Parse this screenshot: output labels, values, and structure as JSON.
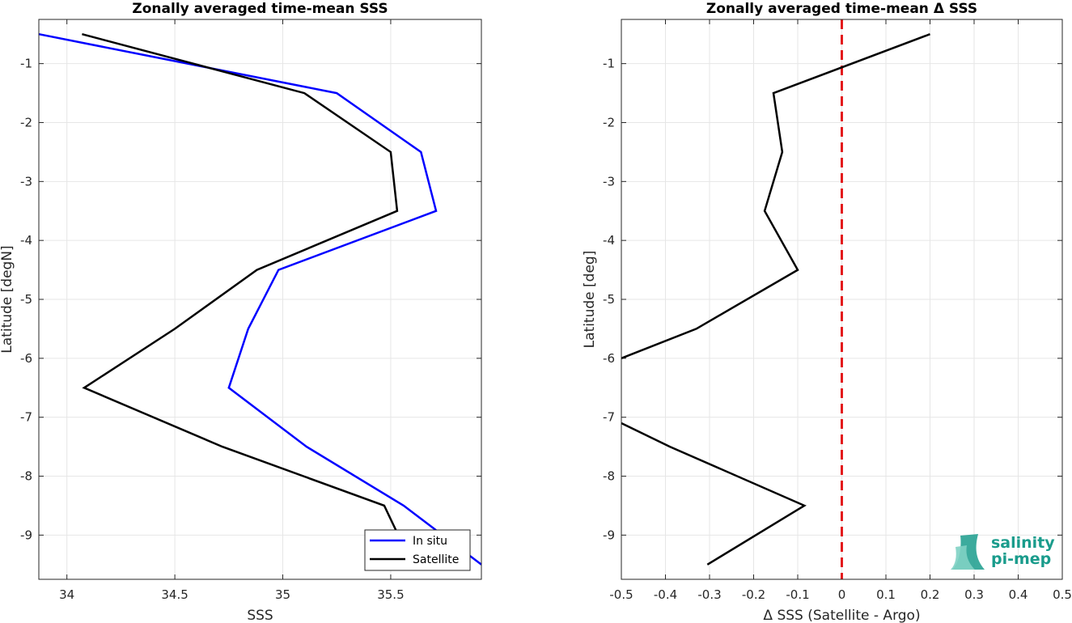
{
  "chart_data": [
    {
      "type": "line",
      "title": "Zonally averaged time-mean SSS",
      "xlabel": "SSS",
      "ylabel": "Latitude [degN]",
      "xlim": [
        33.87,
        35.92
      ],
      "ylim": [
        -9.75,
        -0.25
      ],
      "xticks": [
        34,
        34.5,
        35,
        35.5
      ],
      "xtick_labels": [
        "34",
        "34.5",
        "35",
        "35.5"
      ],
      "yticks": [
        -1,
        -2,
        -3,
        -4,
        -5,
        -6,
        -7,
        -8,
        -9
      ],
      "ytick_labels": [
        "-1",
        "-2",
        "-3",
        "-4",
        "-5",
        "-6",
        "-7",
        "-8",
        "-9"
      ],
      "grid": true,
      "legend": "bottom-right",
      "series": [
        {
          "name": "In situ",
          "color": "#0000ff",
          "points": [
            [
              33.87,
              -0.5
            ],
            [
              35.25,
              -1.5
            ],
            [
              35.64,
              -2.5
            ],
            [
              35.71,
              -3.5
            ],
            [
              34.98,
              -4.5
            ],
            [
              34.84,
              -5.5
            ],
            [
              34.75,
              -6.5
            ],
            [
              35.11,
              -7.5
            ],
            [
              35.56,
              -8.5
            ],
            [
              35.92,
              -9.5
            ]
          ]
        },
        {
          "name": "Satellite",
          "color": "#000000",
          "points": [
            [
              34.07,
              -0.5
            ],
            [
              35.1,
              -1.5
            ],
            [
              35.5,
              -2.5
            ],
            [
              35.53,
              -3.5
            ],
            [
              34.88,
              -4.5
            ],
            [
              34.5,
              -5.5
            ],
            [
              34.08,
              -6.5
            ],
            [
              34.72,
              -7.5
            ],
            [
              35.47,
              -8.5
            ],
            [
              35.6,
              -9.5
            ]
          ]
        }
      ]
    },
    {
      "type": "line",
      "title": "Zonally averaged time-mean Δ SSS",
      "xlabel": "Δ SSS (Satellite - Argo)",
      "ylabel": "Latitude [deg]",
      "xlim": [
        -0.5,
        0.5
      ],
      "ylim": [
        -9.75,
        -0.25
      ],
      "xticks": [
        -0.5,
        -0.4,
        -0.3,
        -0.2,
        -0.1,
        0,
        0.1,
        0.2,
        0.3,
        0.4,
        0.5
      ],
      "xtick_labels": [
        "-0.5",
        "-0.4",
        "-0.3",
        "-0.2",
        "-0.1",
        "0",
        "0.1",
        "0.2",
        "0.3",
        "0.4",
        "0.5"
      ],
      "yticks": [
        -1,
        -2,
        -3,
        -4,
        -5,
        -6,
        -7,
        -8,
        -9
      ],
      "ytick_labels": [
        "-1",
        "-2",
        "-3",
        "-4",
        "-5",
        "-6",
        "-7",
        "-8",
        "-9"
      ],
      "grid": true,
      "reference_line": {
        "x": 0,
        "color": "#e31a1c",
        "style": "dashed"
      },
      "series": [
        {
          "color": "#000000",
          "segments": [
            [
              [
                0.2,
                -0.5
              ],
              [
                -0.155,
                -1.5
              ],
              [
                -0.135,
                -2.5
              ],
              [
                -0.175,
                -3.5
              ],
              [
                -0.1,
                -4.5
              ],
              [
                -0.33,
                -5.5
              ],
              [
                -0.5,
                -6.0
              ]
            ],
            [
              [
                -0.5,
                -7.1
              ],
              [
                -0.39,
                -7.5
              ],
              [
                -0.085,
                -8.5
              ],
              [
                -0.305,
                -9.5
              ]
            ]
          ]
        }
      ]
    }
  ],
  "logo": {
    "line1": "salinity",
    "line2": "pi-mep",
    "color": "#1a9c8c"
  }
}
